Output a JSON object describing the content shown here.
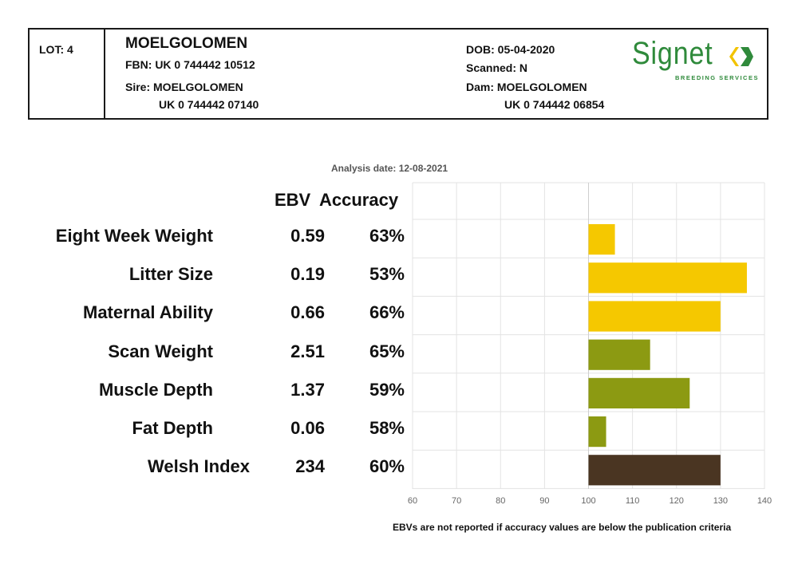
{
  "header": {
    "lot": "LOT: 4",
    "name": "MOELGOLOMEN",
    "fbn": "FBN: UK 0 744442 10512",
    "sire": "Sire: MOELGOLOMEN",
    "sire_id": "UK 0 744442 07140",
    "dob": "DOB: 05-04-2020",
    "scanned": "Scanned: N",
    "dam": "Dam: MOELGOLOMEN",
    "dam_id": "UK 0 744442 06854"
  },
  "logo": {
    "word": "Signet",
    "sub": "BREEDING SERVICES",
    "color": "#2f8a3b",
    "accent": "#f2c300"
  },
  "analysis_date": "Analysis date: 12-08-2021",
  "columns": {
    "ebv": "EBV",
    "accuracy": "Accuracy"
  },
  "footnote": "EBVs are not reported if accuracy values are below the publication criteria",
  "colors": {
    "yellow": "#f5c800",
    "olive": "#8c9a12",
    "brown": "#4a3522",
    "grid": "#e3e3e3"
  },
  "chart_data": {
    "type": "bar",
    "orientation": "horizontal",
    "categories": [
      "Eight Week Weight",
      "Litter Size",
      "Maternal Ability",
      "Scan Weight",
      "Muscle Depth",
      "Fat Depth",
      "Welsh Index"
    ],
    "ebv": [
      "0.59",
      "0.19",
      "0.66",
      "2.51",
      "1.37",
      "0.06",
      "234"
    ],
    "accuracy": [
      "63%",
      "53%",
      "66%",
      "65%",
      "59%",
      "58%",
      "60%"
    ],
    "values": [
      106,
      136,
      130,
      114,
      123,
      104,
      130
    ],
    "baseline": 100,
    "bar_colors": [
      "yellow",
      "yellow",
      "yellow",
      "olive",
      "olive",
      "olive",
      "brown"
    ],
    "xlim": [
      60,
      140
    ],
    "xticks": [
      60,
      70,
      80,
      90,
      100,
      110,
      120,
      130,
      140
    ],
    "grid": true
  }
}
